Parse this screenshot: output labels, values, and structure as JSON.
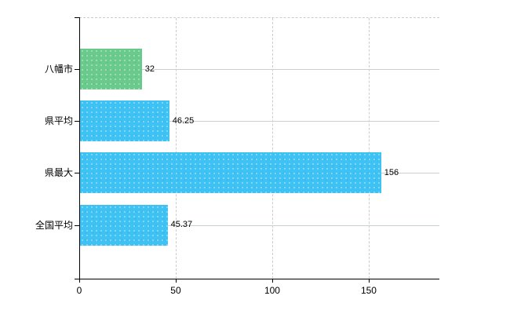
{
  "chart_data": {
    "type": "bar",
    "orientation": "horizontal",
    "title": "",
    "xlabel": "",
    "ylabel": "",
    "categories": [
      "八幡市",
      "県平均",
      "県最大",
      "全国平均"
    ],
    "values": [
      32,
      46.25,
      156,
      45.37
    ],
    "value_labels": [
      "32",
      "46.25",
      "156",
      "45.37"
    ],
    "bar_colors": [
      "#69ca8c",
      "#3ec1f3",
      "#3ec1f3",
      "#3ec1f3"
    ],
    "x_ticks": [
      0,
      50,
      100,
      150
    ],
    "x_tick_labels": [
      "0",
      "50",
      "100",
      "150"
    ],
    "xlim": [
      0,
      186.6
    ],
    "grid": true,
    "legend": false,
    "styles": {
      "axis_color": "#000000",
      "category_gridline_color": "#c9d2c9",
      "dashed_gridline_color": "#cccccc",
      "label_color": "#000000",
      "background": "#ffffff"
    }
  }
}
